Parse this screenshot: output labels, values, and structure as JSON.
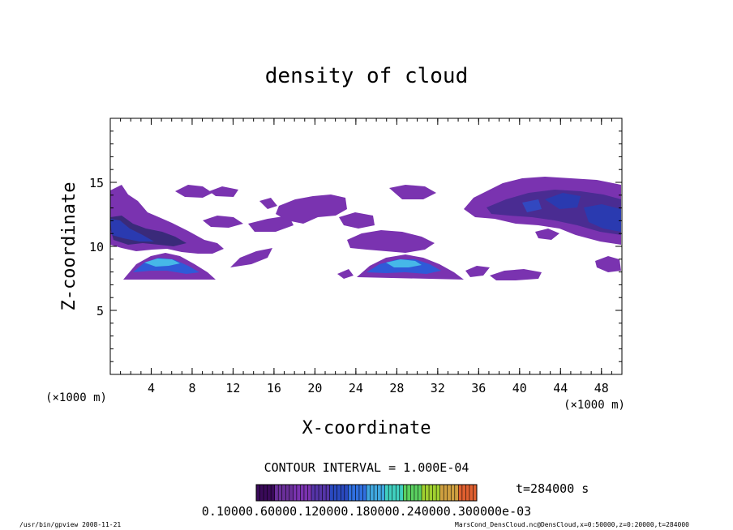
{
  "chart_data": {
    "type": "heatmap",
    "title": "density of cloud",
    "xlabel": "X-coordinate",
    "ylabel": "Z-coordinate",
    "x_unit": "(×1000 m)",
    "y_unit": "(×1000 m)",
    "xlim": [
      0,
      50
    ],
    "ylim": [
      0,
      20
    ],
    "x_ticks": [
      4,
      8,
      12,
      16,
      20,
      24,
      28,
      32,
      36,
      40,
      44,
      48
    ],
    "y_ticks": [
      5,
      10,
      15
    ],
    "contour_interval": "CONTOUR INTERVAL = 1.000E-04",
    "time_label": "t=284000 s",
    "colorbar_labels": "0.10000.60000.120000.180000.240000.300000e-03",
    "footer_left": "/usr/bin/gpview  2008-11-21",
    "footer_right": "MarsCond_DensCloud.nc@DensCloud,x=0:50000,z=0:20000,t=284000",
    "colors": [
      "#3a0a5a",
      "#6a2f9a",
      "#7a33b0",
      "#5535a8",
      "#2a4ac0",
      "#3070e0",
      "#40a8e0",
      "#40d0c0",
      "#5ad060",
      "#a0d030",
      "#d0a040",
      "#e06030"
    ],
    "cloud_regions": [
      {
        "x": [
          0,
          9
        ],
        "z": [
          10,
          12.5
        ],
        "level": 1
      },
      {
        "x": [
          0,
          3
        ],
        "z": [
          11,
          13
        ],
        "level": 4
      },
      {
        "x": [
          1,
          8
        ],
        "z": [
          7.5,
          9.5
        ],
        "level": 6
      },
      {
        "x": [
          25,
          34
        ],
        "z": [
          7.5,
          9
        ],
        "level": 6
      },
      {
        "x": [
          37,
          50
        ],
        "z": [
          10.5,
          15
        ],
        "level": 1
      },
      {
        "x": [
          41,
          50
        ],
        "z": [
          11.5,
          14.5
        ],
        "level": 4
      }
    ]
  }
}
